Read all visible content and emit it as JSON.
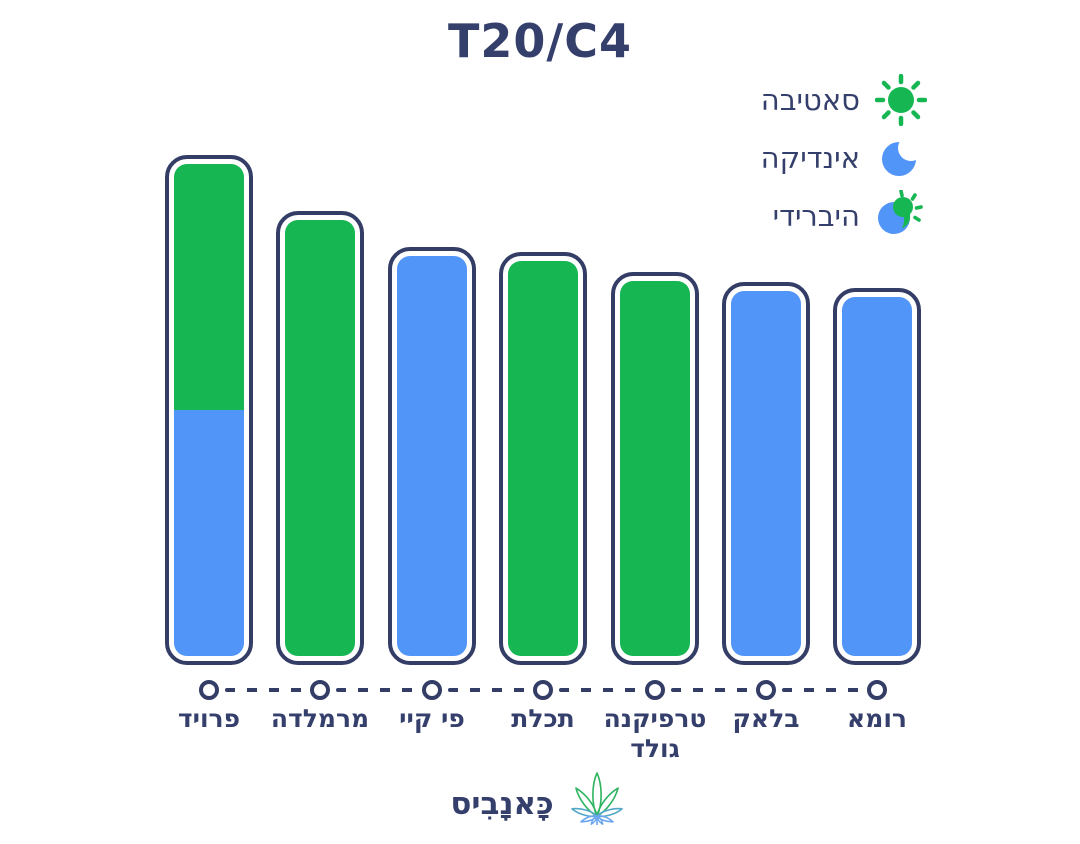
{
  "title": "T20/C4",
  "colors": {
    "sativa_green": "#16b752",
    "indica_blue": "#5295f8",
    "outline_navy": "#333d66",
    "text_navy": "#353f6b",
    "background": "#ffffff"
  },
  "legend": {
    "items": [
      {
        "label": "סאטיבה",
        "icon": "sun-icon",
        "type": "sativa"
      },
      {
        "label": "אינדיקה",
        "icon": "moon-icon",
        "type": "indica"
      },
      {
        "label": "היברידי",
        "icon": "sun-moon-icon",
        "type": "hybrid"
      }
    ]
  },
  "chart_data": {
    "type": "bar",
    "orientation": "vertical",
    "title": "T20/C4",
    "xlabel": "",
    "ylabel": "",
    "value_labels_shown": false,
    "grid": false,
    "legend_position": "top-right",
    "axis_style": "dashed baseline with ring markers, no numeric scale",
    "categories": [
      "פרויד",
      "מרמלדה",
      "פי קיי",
      "תכלת",
      "טרפיקנה גולד",
      "בלאק",
      "רומא"
    ],
    "bars": [
      {
        "category": "פרויד",
        "relative_height": 1.0,
        "type": "hybrid",
        "segments": [
          {
            "type": "sativa",
            "fraction": 0.5
          },
          {
            "type": "indica",
            "fraction": 0.5
          }
        ]
      },
      {
        "category": "מרמלדה",
        "relative_height": 0.89,
        "type": "sativa"
      },
      {
        "category": "פי קיי",
        "relative_height": 0.82,
        "type": "indica"
      },
      {
        "category": "תכלת",
        "relative_height": 0.81,
        "type": "sativa"
      },
      {
        "category": "טרפיקנה גולד",
        "relative_height": 0.77,
        "type": "sativa"
      },
      {
        "category": "בלאק",
        "relative_height": 0.75,
        "type": "indica"
      },
      {
        "category": "רומא",
        "relative_height": 0.74,
        "type": "indica"
      }
    ]
  },
  "footer": {
    "brand": "כָּאנָבִיס",
    "logo": "cannabis-leaf-icon"
  }
}
